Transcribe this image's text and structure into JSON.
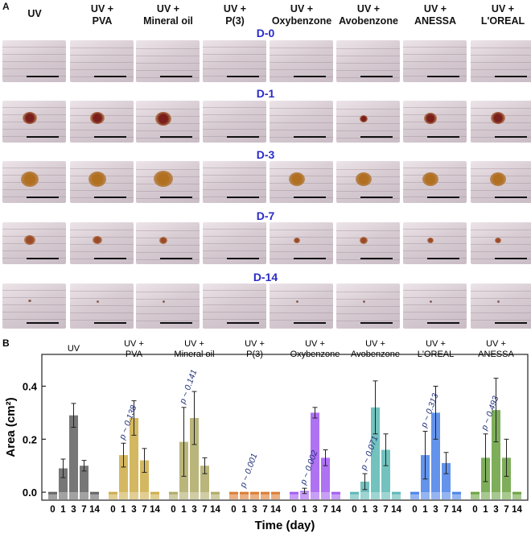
{
  "panel_a": {
    "letter": "A",
    "columns": [
      "UV",
      "UV +\nPVA",
      "UV +\nMineral oil",
      "UV +\nP(3)",
      "UV +\nOxybenzone",
      "UV +\nAvobenzone",
      "UV +\nANESSA",
      "UV +\nL'OREAL"
    ],
    "days": [
      "D-0",
      "D-1",
      "D-3",
      "D-7",
      "D-14"
    ]
  },
  "chart_data": {
    "type": "bar",
    "panel_letter": "B",
    "xlabel": "Time (day)",
    "ylabel": "Area (cm²)",
    "ylim": [
      -0.03,
      0.52
    ],
    "yticks": [
      "0.0",
      "0.2",
      "0.4"
    ],
    "categories": [
      "0",
      "1",
      "3",
      "7",
      "14"
    ],
    "groups": [
      {
        "name": "UV",
        "values": [
          0.0,
          0.09,
          0.29,
          0.1,
          0.0
        ],
        "errors": [
          0,
          0.035,
          0.045,
          0.02,
          0
        ],
        "color": "#555555",
        "p": ""
      },
      {
        "name": "UV +\nPVA",
        "values": [
          0.0,
          0.14,
          0.28,
          0.12,
          0.0
        ],
        "errors": [
          0,
          0.045,
          0.065,
          0.045,
          0
        ],
        "color": "#c9a63a",
        "p": "p ~ 0.138"
      },
      {
        "name": "UV +\nMineral oil",
        "values": [
          0.0,
          0.19,
          0.28,
          0.1,
          0.0
        ],
        "errors": [
          0,
          0.13,
          0.1,
          0.03,
          0
        ],
        "color": "#a9a25a",
        "p": "p ~ 0.141"
      },
      {
        "name": "UV +\nP(3)",
        "values": [
          0.0,
          0.0,
          0.0,
          0.0,
          0.0
        ],
        "errors": [
          0,
          0,
          0,
          0,
          0
        ],
        "color": "#d86f1f",
        "p": "p ~ 0.001"
      },
      {
        "name": "UV +\nOxybenzone",
        "values": [
          0.0,
          0.005,
          0.3,
          0.13,
          0.0
        ],
        "errors": [
          0,
          0.01,
          0.02,
          0.03,
          0
        ],
        "color": "#9a4ff0",
        "p": "p ~ 0.002"
      },
      {
        "name": "UV +\nAvobenzone",
        "values": [
          0.0,
          0.04,
          0.32,
          0.16,
          0.0
        ],
        "errors": [
          0,
          0.03,
          0.1,
          0.06,
          0
        ],
        "color": "#4fb3ae",
        "p": "p ~ 0.071"
      },
      {
        "name": "UV +\nL'OREAL",
        "values": [
          0.0,
          0.14,
          0.3,
          0.11,
          0.0
        ],
        "errors": [
          0,
          0.09,
          0.1,
          0.04,
          0
        ],
        "color": "#3c78e6",
        "p": "p ~ 0.313"
      },
      {
        "name": "UV +\nANESSA",
        "values": [
          0.0,
          0.13,
          0.31,
          0.13,
          0.0
        ],
        "errors": [
          0,
          0.09,
          0.12,
          0.07,
          0
        ],
        "color": "#5f9a32",
        "p": "p ~ 0.493"
      }
    ]
  }
}
